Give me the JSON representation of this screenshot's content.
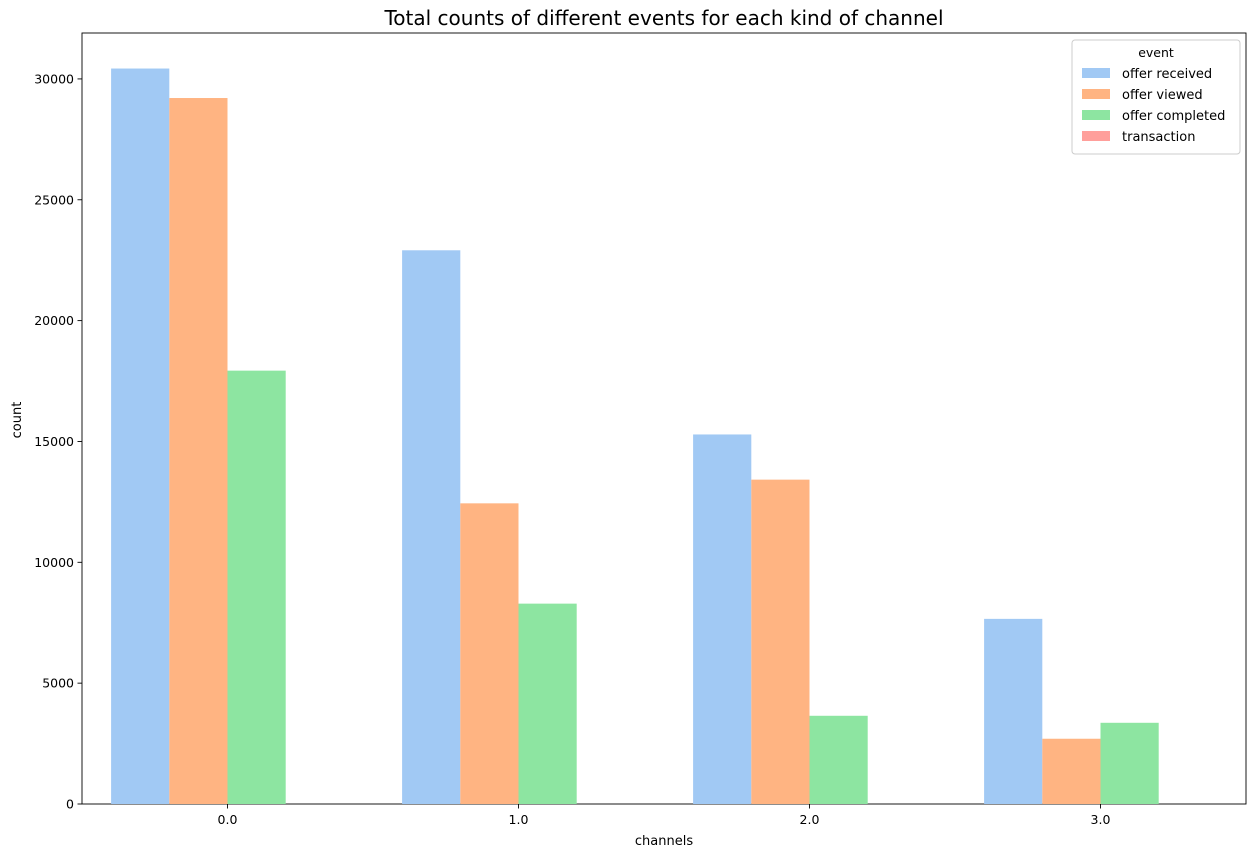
{
  "chart_data": {
    "type": "bar",
    "title": "Total counts of different events for each kind of channel",
    "xlabel": "channels",
    "ylabel": "count",
    "categories": [
      "0.0",
      "1.0",
      "2.0",
      "3.0"
    ],
    "ylim": [
      0,
      31900
    ],
    "yticks": [
      0,
      5000,
      10000,
      15000,
      20000,
      25000,
      30000
    ],
    "grid": false,
    "legend": {
      "title": "event",
      "placement": "top-right"
    },
    "series": [
      {
        "name": "offer received",
        "color": "#a1c9f4",
        "values": [
          30430,
          22910,
          15290,
          7660
        ]
      },
      {
        "name": "offer viewed",
        "color": "#ffb482",
        "values": [
          29210,
          12440,
          13420,
          2700
        ]
      },
      {
        "name": "offer completed",
        "color": "#8de5a1",
        "values": [
          17930,
          8290,
          3650,
          3360
        ]
      },
      {
        "name": "transaction",
        "color": "#ff9f9b",
        "values": [
          0,
          0,
          0,
          0
        ]
      }
    ]
  }
}
